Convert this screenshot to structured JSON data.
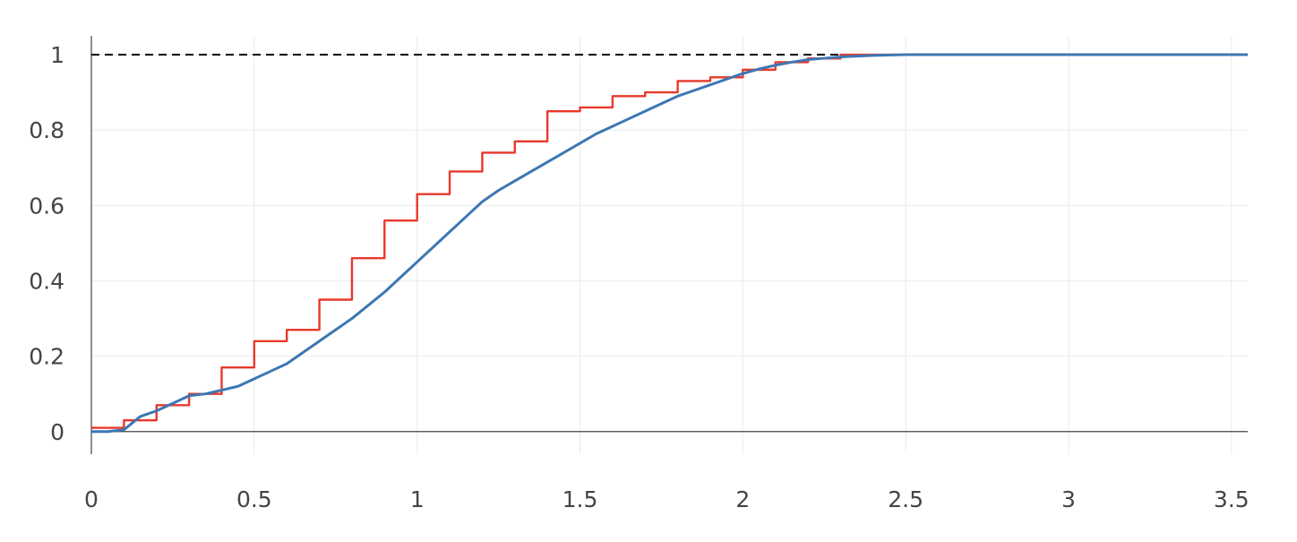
{
  "chart_data": {
    "type": "line",
    "title": "",
    "xlabel": "",
    "ylabel": "",
    "xlim": [
      0,
      3.55
    ],
    "ylim": [
      -0.06,
      1.05
    ],
    "grid": true,
    "legend": "none",
    "x_ticks": [
      {
        "value": 0,
        "label": "0"
      },
      {
        "value": 0.5,
        "label": "0.5"
      },
      {
        "value": 1,
        "label": "1"
      },
      {
        "value": 1.5,
        "label": "1.5"
      },
      {
        "value": 2,
        "label": "2"
      },
      {
        "value": 2.5,
        "label": "2.5"
      },
      {
        "value": 3,
        "label": "3"
      },
      {
        "value": 3.5,
        "label": "3.5"
      }
    ],
    "y_ticks": [
      {
        "value": 0,
        "label": "0"
      },
      {
        "value": 0.2,
        "label": "0.2"
      },
      {
        "value": 0.4,
        "label": "0.4"
      },
      {
        "value": 0.6,
        "label": "0.6"
      },
      {
        "value": 0.8,
        "label": "0.8"
      },
      {
        "value": 1,
        "label": "1"
      }
    ],
    "reference_line": {
      "y": 1,
      "style": "dashed",
      "color": "#000000"
    },
    "series": [
      {
        "style": "step",
        "color": "#e8382b",
        "x": [
          0,
          0.1,
          0.2,
          0.3,
          0.4,
          0.5,
          0.6,
          0.7,
          0.8,
          0.9,
          1.0,
          1.1,
          1.2,
          1.3,
          1.4,
          1.5,
          1.6,
          1.7,
          1.8,
          1.9,
          2.0,
          2.1,
          2.2,
          2.3,
          2.4,
          2.5,
          3.55
        ],
        "y": [
          0.01,
          0.03,
          0.07,
          0.1,
          0.17,
          0.24,
          0.27,
          0.35,
          0.46,
          0.56,
          0.63,
          0.69,
          0.74,
          0.77,
          0.85,
          0.86,
          0.89,
          0.9,
          0.93,
          0.94,
          0.96,
          0.98,
          0.99,
          1.0,
          1.0,
          1.0,
          1.0
        ]
      },
      {
        "style": "smooth",
        "color": "#3d77b3",
        "x": [
          0,
          0.05,
          0.1,
          0.15,
          0.2,
          0.25,
          0.3,
          0.35,
          0.4,
          0.45,
          0.5,
          0.55,
          0.6,
          0.65,
          0.7,
          0.75,
          0.8,
          0.85,
          0.9,
          0.95,
          1.0,
          1.05,
          1.1,
          1.15,
          1.2,
          1.25,
          1.3,
          1.35,
          1.4,
          1.45,
          1.5,
          1.55,
          1.6,
          1.65,
          1.7,
          1.75,
          1.8,
          1.85,
          1.9,
          1.95,
          2.0,
          2.05,
          2.1,
          2.15,
          2.2,
          2.3,
          2.4,
          2.5,
          2.7,
          3.0,
          3.55
        ],
        "y": [
          0,
          0,
          0.005,
          0.04,
          0.055,
          0.075,
          0.095,
          0.1,
          0.11,
          0.12,
          0.14,
          0.16,
          0.18,
          0.21,
          0.24,
          0.27,
          0.3,
          0.335,
          0.37,
          0.41,
          0.45,
          0.49,
          0.53,
          0.57,
          0.61,
          0.64,
          0.665,
          0.69,
          0.715,
          0.74,
          0.765,
          0.79,
          0.81,
          0.83,
          0.85,
          0.87,
          0.89,
          0.905,
          0.92,
          0.935,
          0.95,
          0.962,
          0.972,
          0.98,
          0.987,
          0.994,
          0.998,
          1.0,
          1.0,
          1.0,
          1.0
        ]
      }
    ]
  }
}
